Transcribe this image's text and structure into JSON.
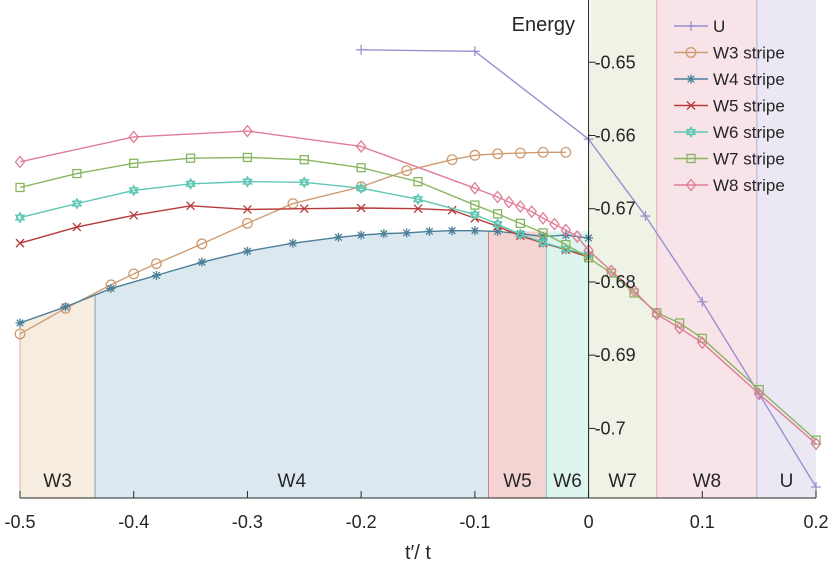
{
  "chart_data": {
    "type": "line",
    "xlabel": "t′/ t",
    "ylabel": "Energy",
    "xlim": [
      -0.5,
      0.2
    ],
    "ylim": [
      -0.7095,
      -0.6415
    ],
    "xticks": [
      -0.5,
      -0.4,
      -0.3,
      -0.2,
      -0.1,
      0,
      0.1,
      0.2
    ],
    "xtick_labels": [
      "-0.5",
      "-0.4",
      "-0.3",
      "-0.2",
      "-0.1",
      "0",
      "0.1",
      "0.2"
    ],
    "yticks": [
      -0.65,
      -0.66,
      -0.67,
      -0.68,
      -0.69,
      -0.7
    ],
    "ytick_labels": [
      "-0.65",
      "-0.66",
      "-0.67",
      "-0.68",
      "-0.69",
      "-0.7"
    ],
    "y_axis_position": "at x = 0",
    "grid": false,
    "legend_position": "top-right",
    "regions": [
      {
        "label": "W3",
        "x0": -0.5,
        "x1": -0.434,
        "color": "#f6ece0",
        "edge": "#d8b08a"
      },
      {
        "label": "W4",
        "x0": -0.434,
        "x1": -0.088,
        "color": "#dce8f0",
        "edge": "#7fa3bb"
      },
      {
        "label": "W5",
        "x0": -0.088,
        "x1": -0.037,
        "color": "#f4d4d2",
        "edge": "#c88582"
      },
      {
        "label": "W6",
        "x0": -0.037,
        "x1": 0.0,
        "color": "#ddf4ef",
        "edge": "#8cd0c2"
      },
      {
        "label": "W7",
        "x0": 0.0,
        "x1": 0.06,
        "color": "#eef3e6",
        "edge": "#b5cc96"
      },
      {
        "label": "W8",
        "x0": 0.06,
        "x1": 0.148,
        "color": "#f8e3e8",
        "edge": "#e2a8b6"
      },
      {
        "label": "U",
        "x0": 0.148,
        "x1": 0.2,
        "color": "#ebe8f4",
        "edge": "#b4aed8"
      }
    ],
    "series": [
      {
        "name": "U",
        "color": "#9b8fd0",
        "marker": "plus",
        "x": [
          -0.2,
          -0.1,
          0,
          0.05,
          0.1,
          0.15,
          0.2
        ],
        "y": [
          -0.6483,
          -0.6485,
          -0.6605,
          -0.671,
          -0.6827,
          -0.6953,
          -0.708
        ]
      },
      {
        "name": "W3 stripe",
        "color": "#cf9c72",
        "marker": "circle",
        "x": [
          -0.5,
          -0.46,
          -0.42,
          -0.4,
          -0.38,
          -0.34,
          -0.3,
          -0.26,
          -0.2,
          -0.16,
          -0.12,
          -0.1,
          -0.08,
          -0.06,
          -0.04,
          -0.02
        ],
        "y": [
          -0.6871,
          -0.6836,
          -0.6804,
          -0.6789,
          -0.6775,
          -0.6748,
          -0.672,
          -0.6693,
          -0.667,
          -0.6648,
          -0.6633,
          -0.6627,
          -0.6625,
          -0.6624,
          -0.6623,
          -0.6623
        ]
      },
      {
        "name": "W4 stripe",
        "color": "#4c7f99",
        "marker": "asterisk",
        "x": [
          -0.5,
          -0.46,
          -0.42,
          -0.38,
          -0.34,
          -0.3,
          -0.26,
          -0.22,
          -0.2,
          -0.18,
          -0.16,
          -0.14,
          -0.12,
          -0.1,
          -0.08,
          -0.06,
          -0.04,
          -0.02,
          0
        ],
        "y": [
          -0.6856,
          -0.6834,
          -0.6809,
          -0.6791,
          -0.6773,
          -0.6758,
          -0.6747,
          -0.6739,
          -0.6736,
          -0.6734,
          -0.6733,
          -0.6731,
          -0.673,
          -0.673,
          -0.6731,
          -0.6734,
          -0.6738,
          -0.6736,
          -0.674
        ]
      },
      {
        "name": "W5 stripe",
        "color": "#b83a3a",
        "marker": "x",
        "x": [
          -0.5,
          -0.45,
          -0.4,
          -0.35,
          -0.3,
          -0.25,
          -0.2,
          -0.15,
          -0.12,
          -0.1,
          -0.08,
          -0.06,
          -0.04,
          -0.02,
          0
        ],
        "y": [
          -0.6747,
          -0.6725,
          -0.6709,
          -0.6696,
          -0.6701,
          -0.67,
          -0.6699,
          -0.67,
          -0.6702,
          -0.6713,
          -0.6724,
          -0.6737,
          -0.6747,
          -0.6756,
          -0.6766
        ]
      },
      {
        "name": "W6 stripe",
        "color": "#5fc8b4",
        "marker": "hexagram",
        "x": [
          -0.5,
          -0.45,
          -0.4,
          -0.35,
          -0.3,
          -0.25,
          -0.2,
          -0.15,
          -0.1,
          -0.08,
          -0.06,
          -0.04,
          -0.02,
          0
        ],
        "y": [
          -0.6712,
          -0.6693,
          -0.6675,
          -0.6666,
          -0.6663,
          -0.6664,
          -0.6672,
          -0.6687,
          -0.6708,
          -0.6721,
          -0.6735,
          -0.6746,
          -0.6755,
          -0.6763
        ]
      },
      {
        "name": "W7 stripe",
        "color": "#88b660",
        "marker": "square",
        "x": [
          -0.5,
          -0.45,
          -0.4,
          -0.35,
          -0.3,
          -0.25,
          -0.2,
          -0.15,
          -0.1,
          -0.08,
          -0.06,
          -0.04,
          -0.02,
          0,
          0.02,
          0.04,
          0.06,
          0.08,
          0.1,
          0.15,
          0.2
        ],
        "y": [
          -0.6671,
          -0.6652,
          -0.6638,
          -0.6631,
          -0.663,
          -0.6633,
          -0.6644,
          -0.6663,
          -0.6695,
          -0.6707,
          -0.672,
          -0.6733,
          -0.6749,
          -0.6767,
          -0.6788,
          -0.6815,
          -0.6842,
          -0.6856,
          -0.6877,
          -0.6947,
          -0.7016
        ]
      },
      {
        "name": "W8 stripe",
        "color": "#e07c96",
        "marker": "diamond",
        "x": [
          -0.5,
          -0.4,
          -0.3,
          -0.2,
          -0.1,
          -0.08,
          -0.07,
          -0.06,
          -0.05,
          -0.04,
          -0.03,
          -0.02,
          -0.01,
          0,
          0.02,
          0.04,
          0.06,
          0.08,
          0.1,
          0.15,
          0.2
        ],
        "y": [
          -0.6636,
          -0.6602,
          -0.6594,
          -0.6615,
          -0.6672,
          -0.6684,
          -0.6691,
          -0.6697,
          -0.6704,
          -0.6713,
          -0.6721,
          -0.6729,
          -0.6738,
          -0.6757,
          -0.6785,
          -0.6812,
          -0.6844,
          -0.6863,
          -0.6883,
          -0.6953,
          -0.7021
        ]
      }
    ]
  }
}
